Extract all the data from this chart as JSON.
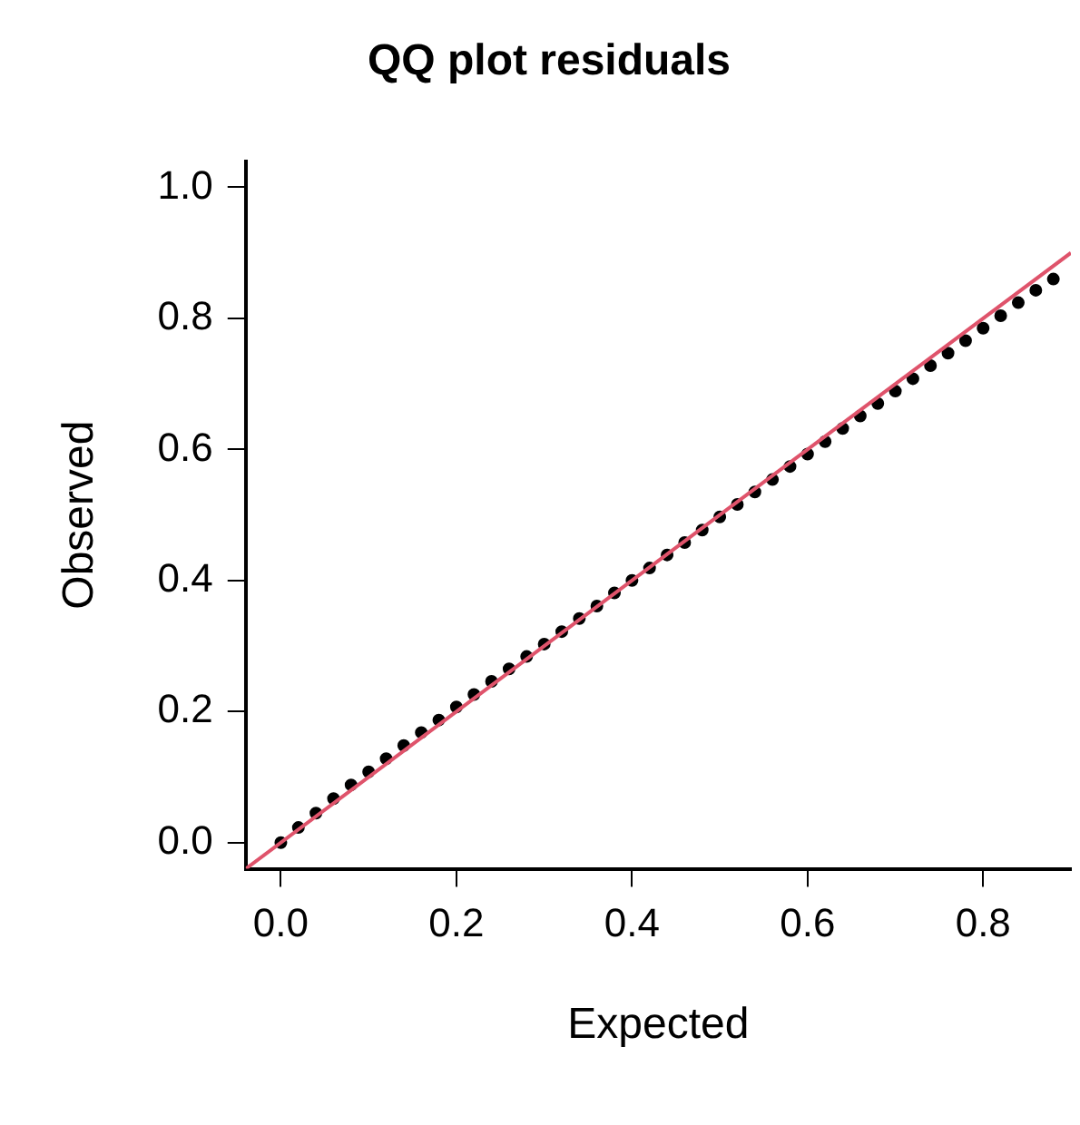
{
  "chart_data": {
    "type": "scatter",
    "title": "QQ plot residuals",
    "xlabel": "Expected",
    "ylabel": "Observed",
    "xlim": [
      -0.04,
      0.9
    ],
    "ylim": [
      -0.04,
      1.04
    ],
    "xticks": [
      {
        "value": 0,
        "label": "0.0"
      },
      {
        "value": 0.2,
        "label": "0.2"
      },
      {
        "value": 0.4,
        "label": "0.4"
      },
      {
        "value": 0.6,
        "label": "0.6"
      },
      {
        "value": 0.8,
        "label": "0.8"
      }
    ],
    "yticks": [
      {
        "value": 0,
        "label": "0.0"
      },
      {
        "value": 0.2,
        "label": "0.2"
      },
      {
        "value": 0.4,
        "label": "0.4"
      },
      {
        "value": 0.6,
        "label": "0.6"
      },
      {
        "value": 0.8,
        "label": "0.8"
      },
      {
        "value": 1,
        "label": "1.0"
      }
    ],
    "grid": false,
    "marker": "circle",
    "series": [
      {
        "color": "#000000",
        "x": [
          0,
          0.02,
          0.04,
          0.06,
          0.08,
          0.1,
          0.12,
          0.14,
          0.16,
          0.18,
          0.2,
          0.22,
          0.24,
          0.26,
          0.28,
          0.3,
          0.32,
          0.34,
          0.36,
          0.38,
          0.4,
          0.42,
          0.44,
          0.46,
          0.48,
          0.5,
          0.52,
          0.54,
          0.56,
          0.58,
          0.6,
          0.62,
          0.64,
          0.66,
          0.68,
          0.7,
          0.72,
          0.74,
          0.76,
          0.78,
          0.8,
          0.82,
          0.84,
          0.86,
          0.88
        ],
        "values": [
          0,
          0.023,
          0.045,
          0.067,
          0.088,
          0.108,
          0.128,
          0.148,
          0.168,
          0.187,
          0.207,
          0.226,
          0.246,
          0.265,
          0.284,
          0.303,
          0.322,
          0.342,
          0.361,
          0.381,
          0.4,
          0.419,
          0.439,
          0.458,
          0.477,
          0.497,
          0.516,
          0.535,
          0.554,
          0.574,
          0.593,
          0.612,
          0.632,
          0.651,
          0.67,
          0.689,
          0.708,
          0.728,
          0.747,
          0.766,
          0.785,
          0.804,
          0.824,
          0.843,
          0.86
        ]
      },
      {
        "type": "line",
        "color": "#df536b",
        "marker": "none",
        "line_style": "solid",
        "x": [
          -0.04,
          0.9
        ],
        "values": [
          -0.04,
          0.9
        ]
      }
    ]
  }
}
